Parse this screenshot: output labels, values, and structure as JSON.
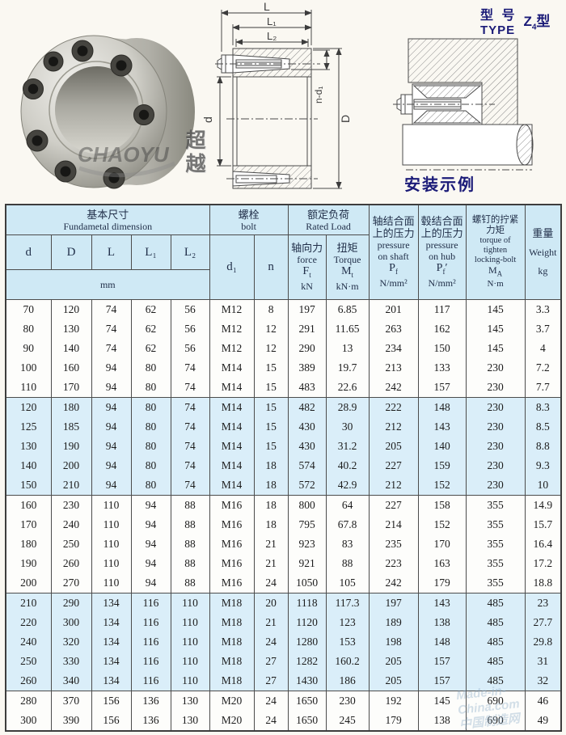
{
  "type_block": {
    "cn": "型 号",
    "en": "TYPE",
    "model_main": "Z",
    "model_sub": "4",
    "model_suffix": "型"
  },
  "install_caption": "安装示例",
  "diagram": {
    "dim_L": "L",
    "dim_L1": "L₁",
    "dim_L2": "L₂",
    "dim_d": "d",
    "dim_D": "D",
    "dim_nd1": "n-d₁"
  },
  "watermarks": {
    "photo_cn": "超越",
    "photo_en": "CHAOYU",
    "table_en": "Made-in-China.com",
    "table_cn": "中国制造网"
  },
  "colors": {
    "header_bg": "#cfe9f5",
    "shaded_row_bg": "#daeef9",
    "accent_navy": "#1b1b78",
    "border": "#4c4c4c"
  },
  "table": {
    "header": {
      "dim_group": {
        "cn": "基本尺寸",
        "en": "Fundametal dimension"
      },
      "bolt_group": {
        "cn": "螺栓",
        "en": "bolt"
      },
      "load_group": {
        "cn": "额定负荷",
        "en": "Rated Load"
      },
      "col_d": "d",
      "col_D": "D",
      "col_L": "L",
      "col_L1": "L₁",
      "col_L2": "L₂",
      "unit_mm": "mm",
      "col_d1": "d₁",
      "col_n": "n",
      "force": {
        "cn": "轴向力",
        "en": "force",
        "sym": "F",
        "sub": "t",
        "unit": "kN"
      },
      "torque": {
        "cn": "扭矩",
        "en": "Torque",
        "sym": "M",
        "sub": "t",
        "unit": "kN·m"
      },
      "p_shaft": {
        "cn1": "轴结合面",
        "cn2": "上的压力",
        "en1": "pressure",
        "en2": "on shaft",
        "sym": "P",
        "sub": "f",
        "prime": "",
        "unit": "N/mm²"
      },
      "p_hub": {
        "cn1": "毂结合面",
        "cn2": "上的压力",
        "en1": "pressure",
        "en2": "on hub",
        "sym": "P",
        "sub": "f",
        "prime": "′",
        "unit": "N/mm²"
      },
      "bolt_torque": {
        "cn1": "螺钉的拧紧",
        "cn2": "力矩",
        "en1": "torque of",
        "en2": "tighten",
        "en3": "locking-bolt",
        "sym": "M",
        "sub": "A",
        "unit": "N·m"
      },
      "weight": {
        "cn": "重量",
        "en": "Weight",
        "unit": "kg"
      }
    },
    "groups": [
      {
        "shaded": false,
        "rows": [
          [
            "70",
            "120",
            "74",
            "62",
            "56",
            "M12",
            "8",
            "197",
            "6.85",
            "201",
            "117",
            "145",
            "3.3"
          ],
          [
            "80",
            "130",
            "74",
            "62",
            "56",
            "M12",
            "12",
            "291",
            "11.65",
            "263",
            "162",
            "145",
            "3.7"
          ],
          [
            "90",
            "140",
            "74",
            "62",
            "56",
            "M12",
            "12",
            "290",
            "13",
            "234",
            "150",
            "145",
            "4"
          ],
          [
            "100",
            "160",
            "94",
            "80",
            "74",
            "M14",
            "15",
            "389",
            "19.7",
            "213",
            "133",
            "230",
            "7.2"
          ],
          [
            "110",
            "170",
            "94",
            "80",
            "74",
            "M14",
            "15",
            "483",
            "22.6",
            "242",
            "157",
            "230",
            "7.7"
          ]
        ]
      },
      {
        "shaded": true,
        "rows": [
          [
            "120",
            "180",
            "94",
            "80",
            "74",
            "M14",
            "15",
            "482",
            "28.9",
            "222",
            "148",
            "230",
            "8.3"
          ],
          [
            "125",
            "185",
            "94",
            "80",
            "74",
            "M14",
            "15",
            "430",
            "30",
            "212",
            "143",
            "230",
            "8.5"
          ],
          [
            "130",
            "190",
            "94",
            "80",
            "74",
            "M14",
            "15",
            "430",
            "31.2",
            "205",
            "140",
            "230",
            "8.8"
          ],
          [
            "140",
            "200",
            "94",
            "80",
            "74",
            "M14",
            "18",
            "574",
            "40.2",
            "227",
            "159",
            "230",
            "9.3"
          ],
          [
            "150",
            "210",
            "94",
            "80",
            "74",
            "M14",
            "18",
            "572",
            "42.9",
            "212",
            "152",
            "230",
            "10"
          ]
        ]
      },
      {
        "shaded": false,
        "rows": [
          [
            "160",
            "230",
            "110",
            "94",
            "88",
            "M16",
            "18",
            "800",
            "64",
            "227",
            "158",
            "355",
            "14.9"
          ],
          [
            "170",
            "240",
            "110",
            "94",
            "88",
            "M16",
            "18",
            "795",
            "67.8",
            "214",
            "152",
            "355",
            "15.7"
          ],
          [
            "180",
            "250",
            "110",
            "94",
            "88",
            "M16",
            "21",
            "923",
            "83",
            "235",
            "170",
            "355",
            "16.4"
          ],
          [
            "190",
            "260",
            "110",
            "94",
            "88",
            "M16",
            "21",
            "921",
            "88",
            "223",
            "163",
            "355",
            "17.2"
          ],
          [
            "200",
            "270",
            "110",
            "94",
            "88",
            "M16",
            "24",
            "1050",
            "105",
            "242",
            "179",
            "355",
            "18.8"
          ]
        ]
      },
      {
        "shaded": true,
        "rows": [
          [
            "210",
            "290",
            "134",
            "116",
            "110",
            "M18",
            "20",
            "1118",
            "117.3",
            "197",
            "143",
            "485",
            "23"
          ],
          [
            "220",
            "300",
            "134",
            "116",
            "110",
            "M18",
            "21",
            "1120",
            "123",
            "189",
            "138",
            "485",
            "27.7"
          ],
          [
            "240",
            "320",
            "134",
            "116",
            "110",
            "M18",
            "24",
            "1280",
            "153",
            "198",
            "148",
            "485",
            "29.8"
          ],
          [
            "250",
            "330",
            "134",
            "116",
            "110",
            "M18",
            "27",
            "1282",
            "160.2",
            "205",
            "157",
            "485",
            "31"
          ],
          [
            "260",
            "340",
            "134",
            "116",
            "110",
            "M18",
            "27",
            "1430",
            "186",
            "205",
            "157",
            "485",
            "32"
          ]
        ]
      },
      {
        "shaded": false,
        "rows": [
          [
            "280",
            "370",
            "156",
            "136",
            "130",
            "M20",
            "24",
            "1650",
            "230",
            "192",
            "145",
            "690",
            "46"
          ],
          [
            "300",
            "390",
            "156",
            "136",
            "130",
            "M20",
            "24",
            "1650",
            "245",
            "179",
            "138",
            "690",
            "49"
          ]
        ]
      }
    ]
  }
}
